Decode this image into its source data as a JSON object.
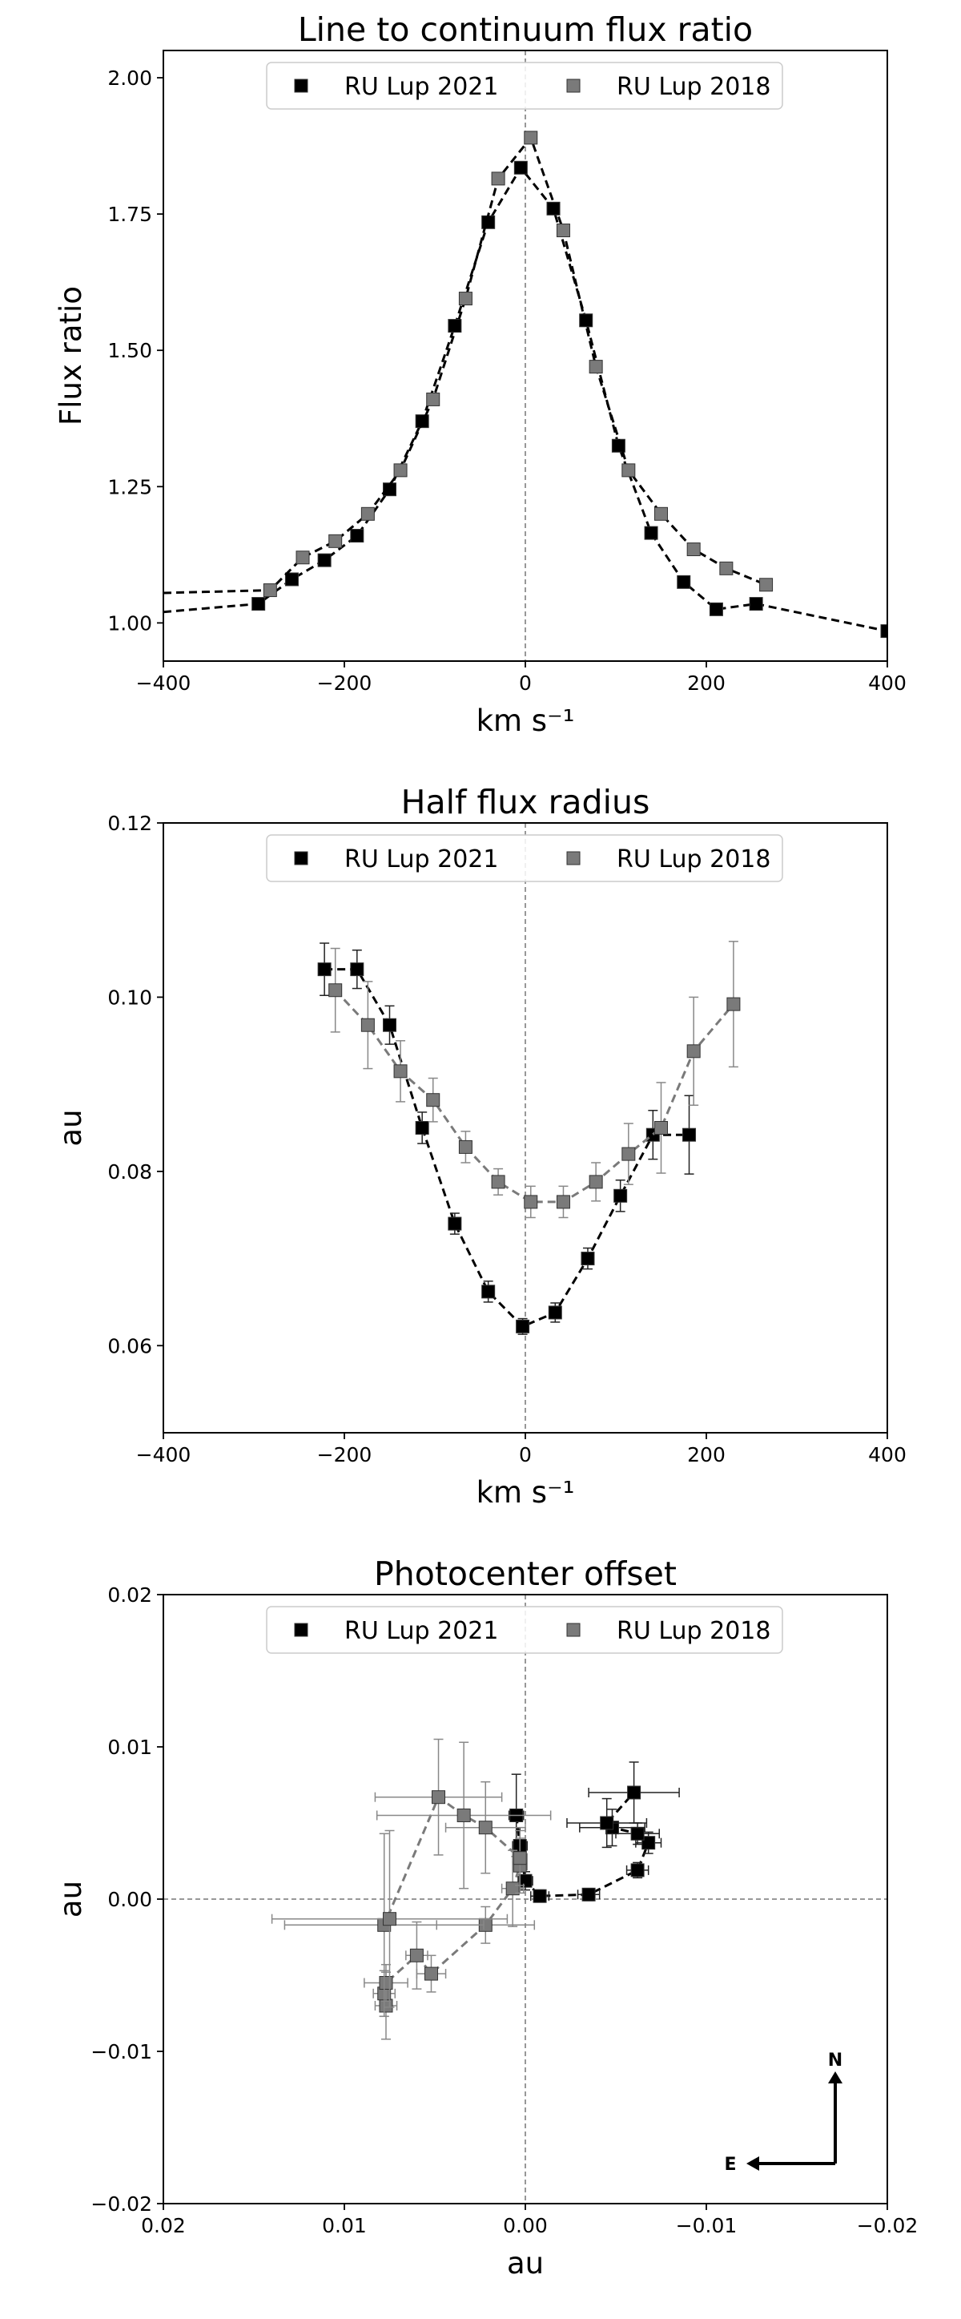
{
  "chart_data": [
    {
      "type": "scatter",
      "title": "Line to continuum flux ratio",
      "xlabel": "km s⁻¹",
      "ylabel": "Flux ratio",
      "xlim": [
        -400,
        400
      ],
      "ylim": [
        0.93,
        2.05
      ],
      "xticks": [
        -400,
        -200,
        0,
        200,
        400
      ],
      "xtick_labels": [
        "−400",
        "−200",
        "0",
        "200",
        "400"
      ],
      "yticks": [
        1.0,
        1.25,
        1.5,
        1.75,
        2.0
      ],
      "ytick_labels": [
        "1.00",
        "1.25",
        "1.50",
        "1.75",
        "2.00"
      ],
      "vlines": [
        0
      ],
      "hlines": [],
      "legend_position": "top-center",
      "series": [
        {
          "name": "RU Lup 2021",
          "color": "#000000",
          "line_color": "#000000",
          "ext_left": [
            -400,
            1.02
          ],
          "ext_right": [
            400,
            0.985
          ],
          "x": [
            -295,
            -258,
            -222,
            -186,
            -150,
            -114,
            -78,
            -41,
            -5,
            31,
            67,
            103,
            139,
            175,
            211,
            255,
            400
          ],
          "y": [
            1.035,
            1.08,
            1.115,
            1.16,
            1.245,
            1.37,
            1.545,
            1.735,
            1.835,
            1.76,
            1.555,
            1.325,
            1.165,
            1.075,
            1.025,
            1.035,
            0.985
          ]
        },
        {
          "name": "RU Lup 2018",
          "color": "#7a7a7a",
          "line_color": "#000000",
          "ext_left": [
            -400,
            1.055
          ],
          "x": [
            -282,
            -246,
            -210,
            -174,
            -138,
            -102,
            -66,
            -30,
            6,
            42,
            78,
            114,
            150,
            186,
            222,
            266
          ],
          "y": [
            1.06,
            1.12,
            1.15,
            1.2,
            1.28,
            1.41,
            1.595,
            1.815,
            1.89,
            1.72,
            1.47,
            1.28,
            1.2,
            1.135,
            1.1,
            1.07
          ]
        }
      ]
    },
    {
      "type": "scatter",
      "title": "Half flux radius",
      "xlabel": "km s⁻¹",
      "ylabel": "au",
      "xlim": [
        -400,
        400
      ],
      "ylim": [
        0.05,
        0.12
      ],
      "xticks": [
        -400,
        -200,
        0,
        200,
        400
      ],
      "xtick_labels": [
        "−400",
        "−200",
        "0",
        "200",
        "400"
      ],
      "yticks": [
        0.06,
        0.08,
        0.1,
        0.12
      ],
      "ytick_labels": [
        "0.06",
        "0.08",
        "0.10",
        "0.12"
      ],
      "vlines": [
        0
      ],
      "hlines": [],
      "legend_position": "top-center",
      "series": [
        {
          "name": "RU Lup 2021",
          "color": "#000000",
          "line_color": "#000000",
          "x": [
            -222,
            -186,
            -150,
            -114,
            -78,
            -41,
            -3,
            33,
            69,
            105,
            141,
            181
          ],
          "y": [
            0.1032,
            0.1032,
            0.0968,
            0.085,
            0.074,
            0.0662,
            0.0622,
            0.0638,
            0.07,
            0.0772,
            0.0842,
            0.0842
          ],
          "yerr": [
            0.003,
            0.0022,
            0.0022,
            0.0018,
            0.0012,
            0.0012,
            0.0009,
            0.0011,
            0.0012,
            0.0018,
            0.0028,
            0.0045
          ]
        },
        {
          "name": "RU Lup 2018",
          "color": "#7a7a7a",
          "line_color": "#7a7a7a",
          "x": [
            -210,
            -174,
            -138,
            -102,
            -66,
            -30,
            6,
            42,
            78,
            114,
            150,
            186,
            230
          ],
          "y": [
            0.1008,
            0.0968,
            0.0915,
            0.0882,
            0.0828,
            0.0788,
            0.0765,
            0.0765,
            0.0788,
            0.082,
            0.085,
            0.0938,
            0.0992
          ],
          "yerr": [
            0.0048,
            0.005,
            0.0035,
            0.0025,
            0.0018,
            0.0015,
            0.0018,
            0.0018,
            0.0022,
            0.0035,
            0.0052,
            0.0062,
            0.0072
          ]
        }
      ]
    },
    {
      "type": "scatter",
      "title": "Photocenter offset",
      "xlabel": "au",
      "ylabel": "au",
      "xlim": [
        0.02,
        -0.02
      ],
      "ylim": [
        -0.02,
        0.02
      ],
      "xticks": [
        0.02,
        0.01,
        0.0,
        -0.01,
        -0.02
      ],
      "xtick_labels": [
        "0.02",
        "0.01",
        "0.00",
        "−0.01",
        "−0.02"
      ],
      "yticks": [
        -0.02,
        -0.01,
        0.0,
        0.01,
        0.02
      ],
      "ytick_labels": [
        "−0.02",
        "−0.01",
        "0.00",
        "0.01",
        "0.02"
      ],
      "vlines": [
        0
      ],
      "hlines": [
        0
      ],
      "legend_position": "top-center",
      "compass": {
        "north": "N",
        "east": "E"
      },
      "series": [
        {
          "name": "RU Lup 2021",
          "color": "#000000",
          "line_color": "#000000",
          "x": [
            0.0005,
            0.0003,
            0.0,
            -0.0008,
            -0.0035,
            -0.0062,
            -0.0068,
            -0.0062,
            -0.0048,
            -0.0045,
            -0.006
          ],
          "y": [
            0.0055,
            0.0035,
            0.0012,
            0.0002,
            0.0003,
            0.0019,
            0.0037,
            0.0043,
            0.0047,
            0.005,
            0.007
          ],
          "xerr": [
            0.0004,
            0.0004,
            0.0004,
            0.0005,
            0.0006,
            0.0006,
            0.0007,
            0.0012,
            0.0018,
            0.0022,
            0.0025
          ],
          "yerr": [
            0.0027,
            0.0012,
            0.0006,
            0.0004,
            0.0004,
            0.0005,
            0.0007,
            0.0007,
            0.0012,
            0.0016,
            0.002
          ]
        },
        {
          "name": "RU Lup 2018",
          "color": "#7a7a7a",
          "line_color": "#7a7a7a",
          "x": [
            0.0077,
            0.0078,
            0.0077,
            0.006,
            0.0052,
            0.0022,
            0.0007,
            0.0003,
            0.0003,
            0.0022,
            0.0034,
            0.0048,
            0.0078,
            0.0075
          ],
          "y": [
            -0.007,
            -0.0062,
            -0.0055,
            -0.0037,
            -0.0049,
            -0.0017,
            0.0007,
            0.0022,
            0.0027,
            0.0047,
            0.0055,
            0.0067,
            -0.0017,
            -0.0013
          ],
          "xerr": [
            0.0006,
            0.0006,
            0.0012,
            0.0006,
            0.0008,
            0.0027,
            0.0006,
            0.0004,
            0.0004,
            0.0022,
            0.0048,
            0.0035,
            0.0055,
            0.0065
          ],
          "yerr": [
            0.0022,
            0.0015,
            0.0012,
            0.0022,
            0.0012,
            0.0012,
            0.0025,
            0.0018,
            0.0018,
            0.003,
            0.0048,
            0.0038,
            0.006,
            0.0058
          ]
        }
      ]
    }
  ]
}
